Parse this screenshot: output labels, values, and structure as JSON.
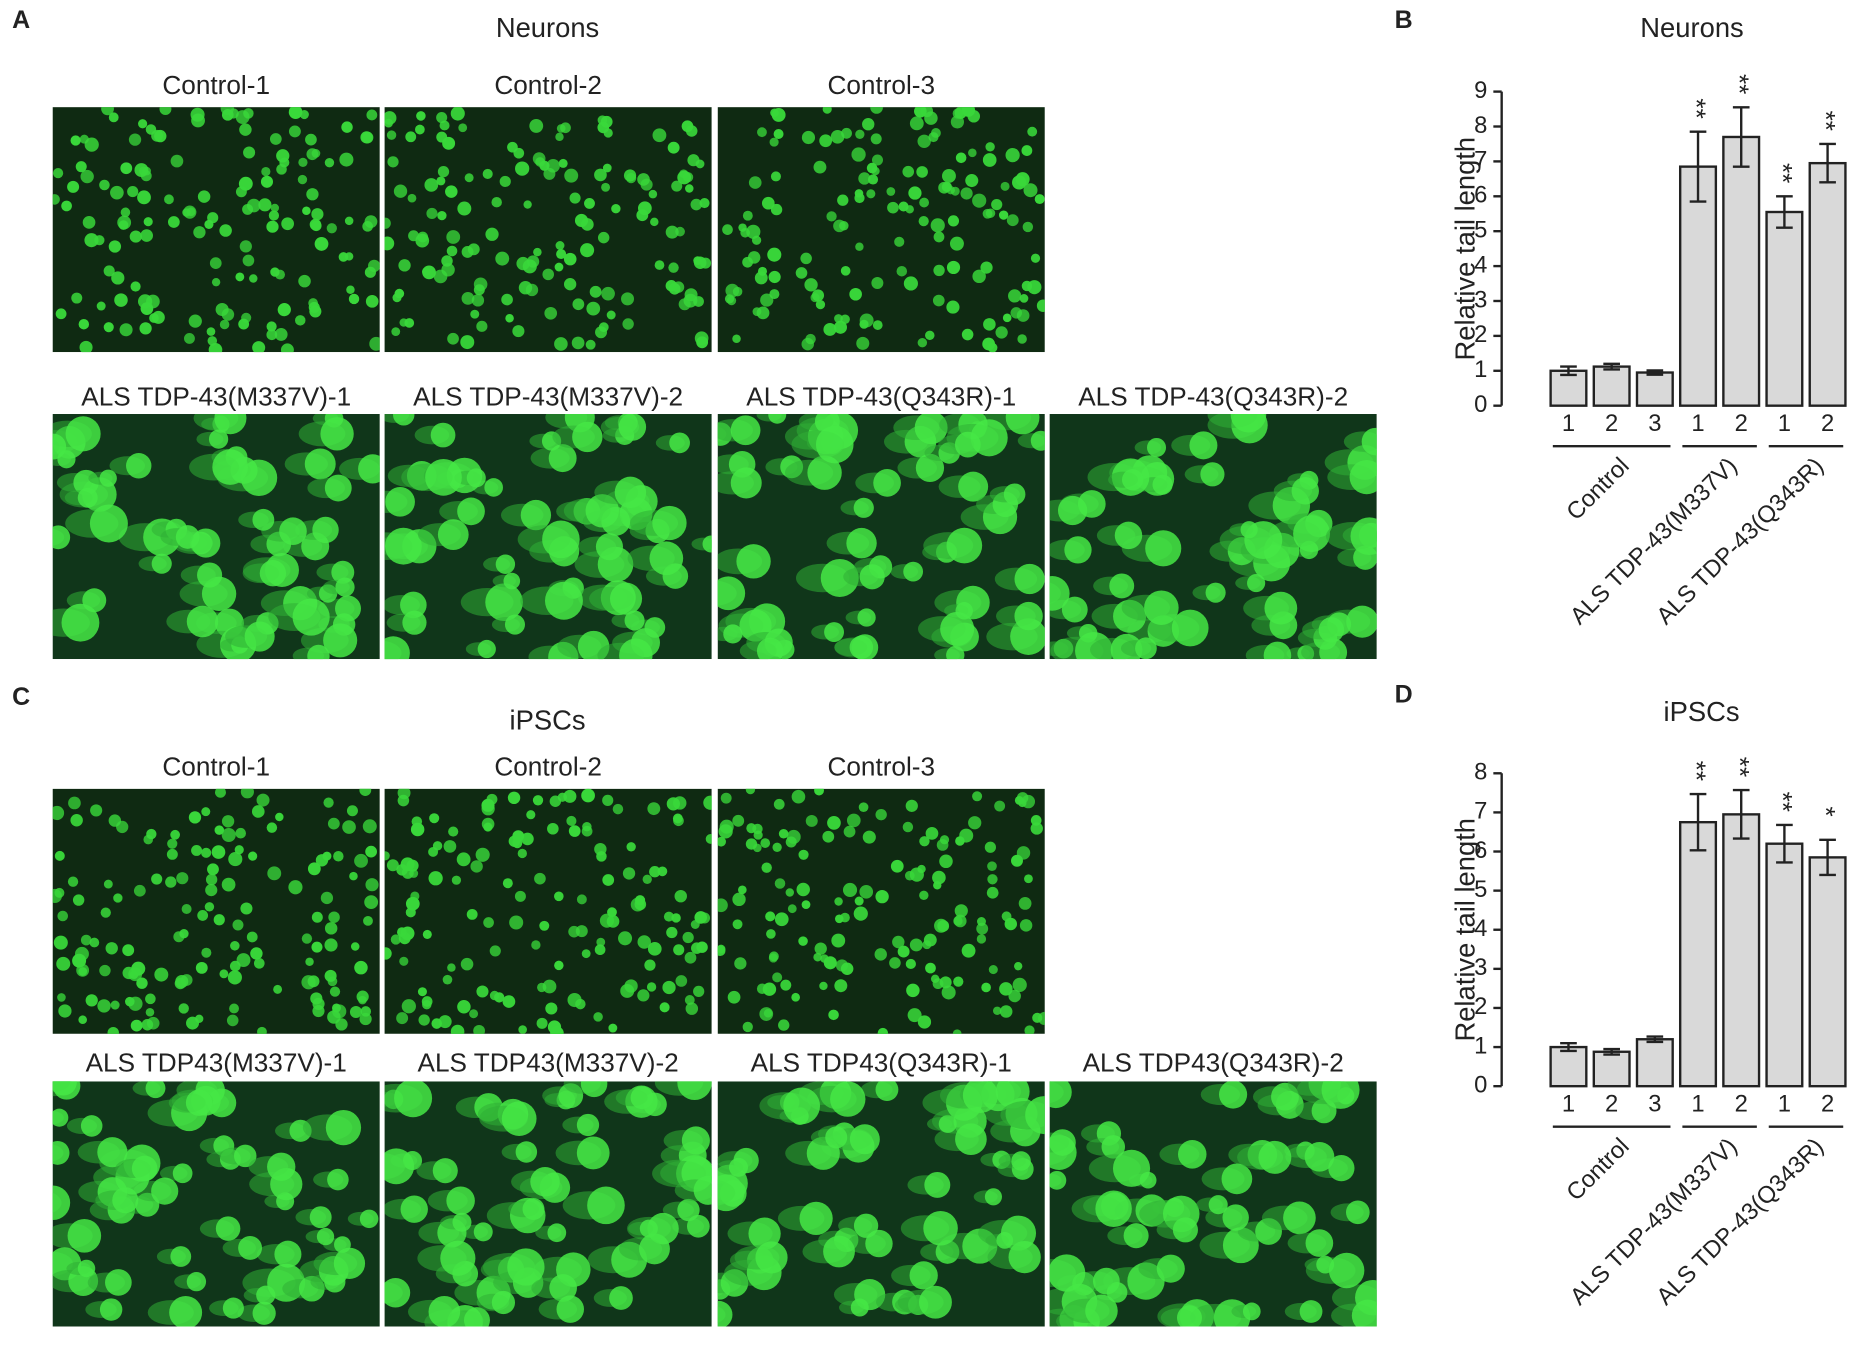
{
  "panels": [
    {
      "letter": "A",
      "title": "Neurons",
      "images": [
        "Control-1",
        "Control-2",
        "Control-3",
        "ALS TDP-43(M337V)-1",
        "ALS TDP-43(M337V)-2",
        "ALS TDP-43(Q343R)-1",
        "ALS TDP-43(Q343R)-2"
      ]
    },
    {
      "letter": "C",
      "title": "iPSCs",
      "images": [
        "Control-1",
        "Control-2",
        "Control-3",
        "ALS TDP43(M337V)-1",
        "ALS TDP43(M337V)-2",
        "ALS TDP43(Q343R)-1",
        "ALS TDP43(Q343R)-2"
      ]
    }
  ],
  "chart_data": [
    {
      "type": "bar",
      "panel_label": "B",
      "title": "Neurons",
      "y_label": "Relative tail length",
      "groups": [
        {
          "name": "Control",
          "categories": [
            "1",
            "2",
            "3"
          ]
        },
        {
          "name": "ALS TDP-43(M337V)",
          "categories": [
            "1",
            "2"
          ]
        },
        {
          "name": "ALS TDP-43(Q343R)",
          "categories": [
            "1",
            "2"
          ]
        }
      ],
      "values": [
        1.0,
        1.12,
        0.95,
        6.85,
        7.7,
        5.55,
        6.95
      ],
      "errors": [
        0.12,
        0.08,
        0.06,
        1.0,
        0.85,
        0.45,
        0.55
      ],
      "significance": [
        null,
        null,
        null,
        "**",
        "**",
        "**",
        "**"
      ],
      "color": "#d9d9d9",
      "ylim": [
        0,
        9
      ],
      "yticks": [
        0,
        1,
        2,
        3,
        4,
        5,
        6,
        7,
        8,
        9
      ]
    },
    {
      "type": "bar",
      "panel_label": "D",
      "title": "iPSCs",
      "y_label": "Relative tail length",
      "groups": [
        {
          "name": "Control",
          "categories": [
            "1",
            "2",
            "3"
          ]
        },
        {
          "name": "ALS TDP-43(M337V)",
          "categories": [
            "1",
            "2"
          ]
        },
        {
          "name": "ALS TDP-43(Q343R)",
          "categories": [
            "1",
            "2"
          ]
        }
      ],
      "values": [
        1.0,
        0.88,
        1.2,
        6.75,
        6.95,
        6.2,
        5.85
      ],
      "errors": [
        0.1,
        0.07,
        0.07,
        0.72,
        0.62,
        0.48,
        0.45
      ],
      "significance": [
        null,
        null,
        null,
        "**",
        "**",
        "**",
        "*"
      ],
      "color": "#d9d9d9",
      "ylim": [
        0,
        8
      ],
      "yticks": [
        0,
        1,
        2,
        3,
        4,
        5,
        6,
        7,
        8
      ]
    }
  ]
}
